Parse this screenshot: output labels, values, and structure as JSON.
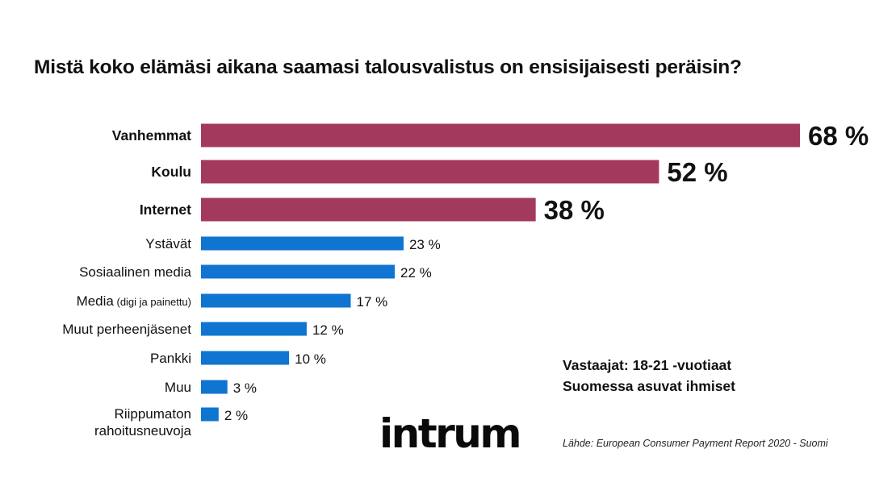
{
  "chart_data": {
    "type": "bar",
    "orientation": "horizontal",
    "title": "Mistä koko elämäsi aikana saamasi talousvalistus on ensisijaisesti peräisin?",
    "unit": "%",
    "categories": [
      {
        "label": "Vanhemmat",
        "value": 68,
        "value_label": "68 %",
        "highlight": true
      },
      {
        "label": "Koulu",
        "value": 52,
        "value_label": "52 %",
        "highlight": true
      },
      {
        "label": "Internet",
        "value": 38,
        "value_label": "38 %",
        "highlight": true
      },
      {
        "label": "Ystävät",
        "value": 23,
        "value_label": "23 %",
        "highlight": false
      },
      {
        "label": "Sosiaalinen media",
        "value": 22,
        "value_label": "22 %",
        "highlight": false
      },
      {
        "label": "Media",
        "label_note": "(digi ja painettu)",
        "value": 17,
        "value_label": "17 %",
        "highlight": false
      },
      {
        "label": "Muut perheenjäsenet",
        "value": 12,
        "value_label": "12 %",
        "highlight": false
      },
      {
        "label": "Pankki",
        "value": 10,
        "value_label": "10 %",
        "highlight": false
      },
      {
        "label": "Muu",
        "value": 3,
        "value_label": "3 %",
        "highlight": false
      },
      {
        "label": "Riippumaton",
        "label_line2": "rahoitusneuvoja",
        "value": 2,
        "value_label": "2 %",
        "highlight": false
      }
    ],
    "colors": {
      "highlight": "#a3395d",
      "normal": "#0f75d1"
    },
    "axes": {
      "visible": false
    },
    "grid": false,
    "legend": "none"
  },
  "respondents": {
    "line1": "Vastaajat: 18-21 -vuotiaat",
    "line2": "Suomessa asuvat ihmiset"
  },
  "logo": {
    "text": "intrum"
  },
  "source": "Lähde: European Consumer Payment Report 2020 - Suomi"
}
